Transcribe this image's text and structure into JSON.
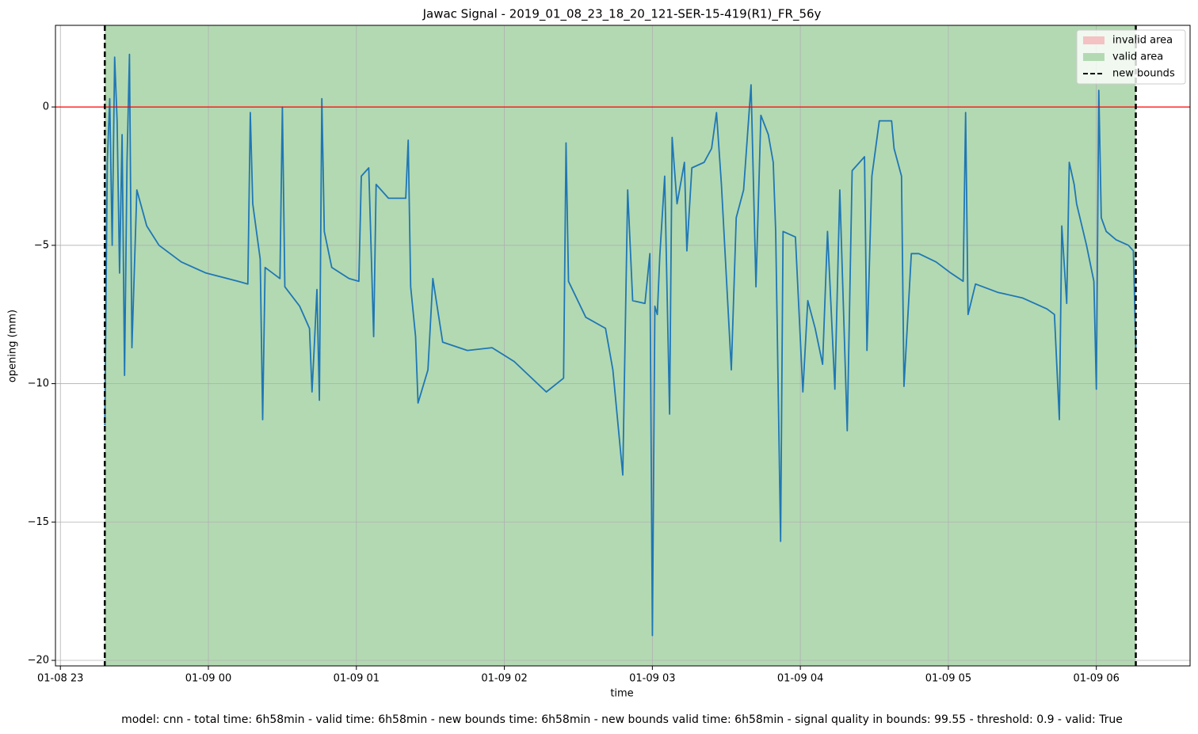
{
  "chart_data": {
    "type": "line",
    "title": "Jawac Signal - 2019_01_08_23_18_20_121-SER-15-419(R1)_FR_56y",
    "xlabel": "time",
    "ylabel": "opening (mm)",
    "footer": "model: cnn - total time: 6h58min - valid time: 6h58min - new bounds time: 6h58min - new bounds valid time: 6h58min - signal quality in bounds: 99.55 - threshold: 0.9 - valid: True",
    "xlim": [
      "01-08 22:58",
      "01-09 06:38"
    ],
    "xticks": [
      "01-08 23",
      "01-09 00",
      "01-09 01",
      "01-09 02",
      "01-09 03",
      "01-09 04",
      "01-09 05",
      "01-09 06"
    ],
    "ylim": [
      -20.2,
      2.95
    ],
    "yticks": [
      {
        "value": 0,
        "label": "0"
      },
      {
        "value": -5,
        "label": "−5"
      },
      {
        "value": -10,
        "label": "−10"
      },
      {
        "value": -15,
        "label": "−15"
      },
      {
        "value": -20,
        "label": "−20"
      }
    ],
    "grid": true,
    "legend_position": "upper right",
    "color": "#1f77b4",
    "hline": {
      "value": 0,
      "color": "#ff0000"
    },
    "invalid_area": {
      "name": "invalid area",
      "color": "#f4c2c2"
    },
    "valid_area": {
      "name": "valid area",
      "color": "#b3d9b3",
      "x": [
        "01-08 23:18",
        "01-09 06:16"
      ]
    },
    "new_bounds": {
      "name": "new bounds",
      "color": "#000000",
      "x": [
        "01-08 23:18",
        "01-09 06:16"
      ]
    },
    "x": [
      "01-08 23:18",
      "01-08 23:19",
      "01-08 23:20",
      "01-08 23:21",
      "01-08 23:22",
      "01-08 23:23",
      "01-08 23:24",
      "01-08 23:25",
      "01-08 23:26",
      "01-08 23:27",
      "01-08 23:28",
      "01-08 23:29",
      "01-08 23:31",
      "01-08 23:35",
      "01-08 23:40",
      "01-08 23:49",
      "01-08 23:59",
      "01-09 00:12",
      "01-09 00:16",
      "01-09 00:17",
      "01-09 00:18",
      "01-09 00:21",
      "01-09 00:22",
      "01-09 00:23",
      "01-09 00:29",
      "01-09 00:30",
      "01-09 00:31",
      "01-09 00:37",
      "01-09 00:41",
      "01-09 00:42",
      "01-09 00:43",
      "01-09 00:44",
      "01-09 00:45",
      "01-09 00:46",
      "01-09 00:47",
      "01-09 00:50",
      "01-09 00:57",
      "01-09 01:01",
      "01-09 01:02",
      "01-09 01:05",
      "01-09 01:07",
      "01-09 01:08",
      "01-09 01:13",
      "01-09 01:20",
      "01-09 01:21",
      "01-09 01:22",
      "01-09 01:24",
      "01-09 01:25",
      "01-09 01:29",
      "01-09 01:31",
      "01-09 01:35",
      "01-09 01:45",
      "01-09 01:55",
      "01-09 02:04",
      "01-09 02:17",
      "01-09 02:24",
      "01-09 02:25",
      "01-09 02:26",
      "01-09 02:33",
      "01-09 02:41",
      "01-09 02:44",
      "01-09 02:48",
      "01-09 02:50",
      "01-09 02:52",
      "01-09 02:57",
      "01-09 02:59",
      "01-09 03:00",
      "01-09 03:01",
      "01-09 03:02",
      "01-09 03:03",
      "01-09 03:05",
      "01-09 03:07",
      "01-09 03:08",
      "01-09 03:10",
      "01-09 03:13",
      "01-09 03:14",
      "01-09 03:16",
      "01-09 03:21",
      "01-09 03:24",
      "01-09 03:26",
      "01-09 03:28",
      "01-09 03:32",
      "01-09 03:34",
      "01-09 03:37",
      "01-09 03:40",
      "01-09 03:42",
      "01-09 03:44",
      "01-09 03:47",
      "01-09 03:49",
      "01-09 03:50",
      "01-09 03:52",
      "01-09 03:53",
      "01-09 03:58",
      "01-09 04:01",
      "01-09 04:03",
      "01-09 04:06",
      "01-09 04:09",
      "01-09 04:11",
      "01-09 04:14",
      "01-09 04:16",
      "01-09 04:19",
      "01-09 04:21",
      "01-09 04:26",
      "01-09 04:27",
      "01-09 04:29",
      "01-09 04:32",
      "01-09 04:37",
      "01-09 04:38",
      "01-09 04:41",
      "01-09 04:42",
      "01-09 04:45",
      "01-09 04:48",
      "01-09 04:55",
      "01-09 05:01",
      "01-09 05:06",
      "01-09 05:07",
      "01-09 05:08",
      "01-09 05:11",
      "01-09 05:20",
      "01-09 05:30",
      "01-09 05:40",
      "01-09 05:43",
      "01-09 05:45",
      "01-09 05:46",
      "01-09 05:48",
      "01-09 05:49",
      "01-09 05:51",
      "01-09 05:52",
      "01-09 05:56",
      "01-09 05:59",
      "01-09 06:00",
      "01-09 06:01",
      "01-09 06:02",
      "01-09 06:04",
      "01-09 06:08",
      "01-09 06:13",
      "01-09 06:15",
      "01-09 06:16"
    ],
    "values": [
      -11.5,
      -2,
      0.3,
      -5,
      1.8,
      -0.5,
      -6,
      -1,
      -9.7,
      -2,
      1.9,
      -8.7,
      -3,
      -4.3,
      -5,
      -5.6,
      -6,
      -6.3,
      -6.4,
      -0.2,
      -3.5,
      -5.5,
      -11.3,
      -5.8,
      -6.2,
      0,
      -6.5,
      -7.2,
      -8,
      -10.3,
      -8.5,
      -6.6,
      -10.6,
      0.3,
      -4.5,
      -5.8,
      -6.2,
      -6.3,
      -2.5,
      -2.2,
      -8.3,
      -2.8,
      -3.3,
      -3.3,
      -1.2,
      -6.5,
      -8.3,
      -10.7,
      -9.5,
      -6.2,
      -8.5,
      -8.8,
      -8.7,
      -9.2,
      -10.3,
      -9.8,
      -1.3,
      -6.3,
      -7.6,
      -8,
      -9.5,
      -13.3,
      -3,
      -7,
      -7.1,
      -5.3,
      -19.1,
      -7.2,
      -7.5,
      -5.4,
      -2.5,
      -11.1,
      -1.1,
      -3.5,
      -2,
      -5.2,
      -2.2,
      -2,
      -1.5,
      -0.2,
      -2.8,
      -9.5,
      -4,
      -3,
      0.8,
      -6.5,
      -0.3,
      -1,
      -2,
      -4.5,
      -15.7,
      -4.5,
      -4.7,
      -10.3,
      -7,
      -8,
      -9.3,
      -4.5,
      -10.2,
      -3,
      -11.7,
      -2.3,
      -1.8,
      -8.8,
      -2.5,
      -0.5,
      -0.5,
      -1.5,
      -2.5,
      -10.1,
      -5.3,
      -5.3,
      -5.6,
      -6,
      -6.3,
      -0.2,
      -7.5,
      -6.4,
      -6.7,
      -6.9,
      -7.3,
      -7.5,
      -11.3,
      -4.3,
      -7.1,
      -2,
      -2.8,
      -3.5,
      -5,
      -6.3,
      -10.2,
      0.6,
      -4,
      -4.5,
      -4.8,
      -5,
      -5.2,
      -8.7
    ]
  }
}
